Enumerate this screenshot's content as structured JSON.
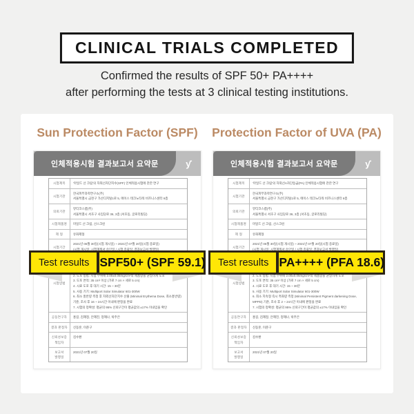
{
  "header": {
    "title": "CLINICAL TRIALS COMPLETED",
    "subtitle_line1": "Confirmed the results of SPF 50+ PA++++",
    "subtitle_line2": "after performing the tests at 3 clinical testing institutions."
  },
  "colors": {
    "background": "#f1f1f0",
    "card": "#ffffff",
    "heading_accent": "#bb8a64",
    "report_header_dark": "#7b7b7b",
    "report_header_light": "#bdbdbd",
    "result_yellow": "#ffe606",
    "result_border": "#2c2415",
    "title_ink": "#141414"
  },
  "icons": {
    "institution_logo_glyph": "ƴ"
  },
  "columns": [
    {
      "heading": "Sun Protection Factor (SPF)",
      "doc_header": "인체적용시험 결과보고서 요약문",
      "result_label": "Test results",
      "result_value": "SPF50+ (SPF 59.1)",
      "rows": [
        {
          "label": "시험제목",
          "lines": [
            "'마일드 선 크림'의 자외선차단지수(SPF) 인체적용시험에 관한 연구"
          ]
        },
        {
          "label": "시험기관",
          "lines": [
            "한국피부과학연구소(주)",
            "서울특별시 금천구 가산디지털1로 5, 에이스 테크노타워 비즈니스센터 6층"
          ]
        },
        {
          "label": "의뢰기관",
          "lines": [
            "뷰티코스랩(주)",
            "서울특별시 서초구 사임당로 36, 3층 (서초동, 글로리빌딩)"
          ]
        },
        {
          "label": "시험제품명",
          "lines": [
            "마일드 선 크림, 선스크린"
          ]
        },
        {
          "label": "제  형",
          "lines": [
            "유화제형"
          ]
        },
        {
          "label": "시험기간",
          "lines": [
            "2021년 06월 30일(시험 개시일) ~ 2021년 07월 20일(시험 종료일)",
            "(시험 개시일: 시험계획서 승인일 / 시험 종료일: 결과보고서 발행일)"
          ]
        },
        {
          "label": "시험방법",
          "lines": [
            "SPF Test Method (ISO24444:2019) 및 한국피부과학연구원 표준작업지침서에 따라 진행함",
            "1. 연구 대상자 선정: 20~60세의 건강한 성인 남녀 10명",
            "2. 도포 방법: 시험 부위에 2.00±0.05mg/cm²의 제품량을 균일하게 도포",
            "3. 도포 면적: 35 cm² 이상 (가로 7 cm × 세로 5 cm)",
            "4. 시료 도포 후 대기 시간: 15 ~ 30분",
            "5. 사용 기기: Multiport Solar Simulator 601-300W",
            "6. 최소 홍반량 측정 후 자외선차단지수 산출 (Minimal Erythema Dose, 최소홍반량) 기준, 조사 후 16 ~ 24시간 이내에 판정을 완료",
            "7. 시험의 정확성: 평균의 95% 신뢰구간이 평균값의 ±17% 이내임을 확인"
          ]
        },
        {
          "label": "공동연구자",
          "lines": [
            "홍길, 김혜정, 안혜진, 정혜나, 박주은"
          ]
        },
        {
          "label": "결과 판정자",
          "lines": [
            "신동훈, 이준구"
          ]
        },
        {
          "label": "신뢰성보증\n책임자",
          "lines": [
            "김수환"
          ]
        },
        {
          "label": "보고서\n발행일",
          "lines": [
            "2021년 07월 20일"
          ]
        }
      ]
    },
    {
      "heading": "Protection Factor of UVA (PA)",
      "doc_header": "인체적용시험 결과보고서 요약문",
      "result_label": "Test results",
      "result_value": "PA++++ (PFA 18.6)",
      "rows": [
        {
          "label": "시험제목",
          "lines": [
            "'마일드 선 크림'의 자외선A차단등급(PA) 인체적용시험에 관한 연구"
          ]
        },
        {
          "label": "시험기관",
          "lines": [
            "한국피부과학연구소(주)",
            "서울특별시 금천구 가산디지털1로 5, 에이스 테크노타워 비즈니스센터 6층"
          ]
        },
        {
          "label": "의뢰기관",
          "lines": [
            "뷰티코스랩(주)",
            "서울특별시 서초구 사임당로 36, 3층 (서초동, 글로리빌딩)"
          ]
        },
        {
          "label": "시험제품명",
          "lines": [
            "마일드 선 크림, 선스크린"
          ]
        },
        {
          "label": "제  형",
          "lines": [
            "유화제형"
          ]
        },
        {
          "label": "시험기간",
          "lines": [
            "2021년 06월 30일(시험 개시일) ~ 2021년 07월 20일(시험 종료일)",
            "(시험 개시일: 시험계획서 승인일 / 시험 종료일: 결과보고서 발행일)"
          ]
        },
        {
          "label": "시험방법",
          "lines": [
            "Japan Cosmetic Industry Association (JCIA)법 및 ISO24442:2011, 한국피부과학연구원 표준작업지침서에 따라 진행함",
            "1. 연구 대상자 선정: 20~60세의 건강한 성인 남녀 10명",
            "2. 도포 방법: 시험 부위에 2.00±0.05mg/cm²의 제품량을 균일하게 도포",
            "3. 도포 면적: 35 cm² 이상 (가로 7 cm × 세로 5 cm)",
            "4. 시료 도포 후 대기 시간: 15 ~ 30분",
            "5. 사용 기기: Multiport Solar Simulator 601-300W",
            "6. 최소 지속형 즉시 흑화량 측정 (Minimal Persistent Pigment darkening Dose, MPPD) 기준, 조사 후 2 ~ 24시간 이내에 판정을 완료",
            "7. 시험의 정확성: 평균의 95% 신뢰구간이 평균값의 ±17% 이내임을 확인"
          ]
        },
        {
          "label": "공동연구자",
          "lines": [
            "홍길, 김혜정, 안혜진, 정혜나, 박주은"
          ]
        },
        {
          "label": "결과 판정자",
          "lines": [
            "신동훈, 이준구"
          ]
        },
        {
          "label": "신뢰성보증\n책임자",
          "lines": [
            "김수환"
          ]
        },
        {
          "label": "보고서\n발행일",
          "lines": [
            "2021년 07월 20일"
          ]
        }
      ]
    }
  ]
}
